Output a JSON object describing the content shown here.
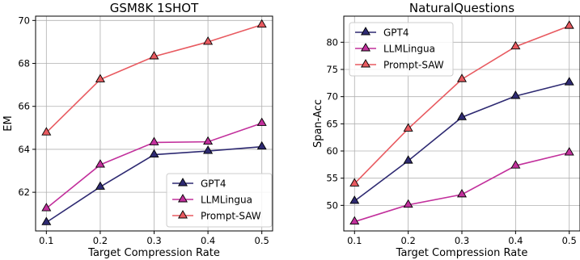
{
  "chart_data": [
    {
      "type": "line",
      "title": "GSM8K 1SHOT",
      "xlabel": "Target Compression Rate",
      "ylabel": "EM",
      "x": [
        0.1,
        0.2,
        0.3,
        0.4,
        0.5
      ],
      "x_tick_labels": [
        "0.1",
        "0.2",
        "0.3",
        "0.4",
        "0.5"
      ],
      "yticks": [
        62,
        64,
        66,
        68,
        70
      ],
      "y_tick_labels": [
        "62",
        "64",
        "66",
        "68",
        "70"
      ],
      "xlim": [
        0.08,
        0.52
      ],
      "ylim": [
        60.2,
        70.2
      ],
      "grid": true,
      "legend_position": "lower-right",
      "series": [
        {
          "name": "GPT4",
          "color": "#2e2a72",
          "values": [
            60.6,
            62.25,
            63.75,
            63.92,
            64.12
          ]
        },
        {
          "name": "LLMLingua",
          "color": "#c2309c",
          "values": [
            61.25,
            63.28,
            64.32,
            64.35,
            65.22
          ]
        },
        {
          "name": "Prompt-SAW",
          "color": "#e85a60",
          "values": [
            64.78,
            67.25,
            68.32,
            69.0,
            69.8
          ]
        }
      ]
    },
    {
      "type": "line",
      "title": "NaturalQuestions",
      "xlabel": "Target Compression Rate",
      "ylabel": "Span-Acc",
      "x": [
        0.1,
        0.2,
        0.3,
        0.4,
        0.5
      ],
      "x_tick_labels": [
        "0.1",
        "0.2",
        "0.3",
        "0.4",
        "0.5"
      ],
      "yticks": [
        50,
        55,
        60,
        65,
        70,
        75,
        80
      ],
      "y_tick_labels": [
        "50",
        "55",
        "60",
        "65",
        "70",
        "75",
        "80"
      ],
      "xlim": [
        0.08,
        0.52
      ],
      "ylim": [
        45.3,
        84.8
      ],
      "grid": true,
      "legend_position": "upper-left",
      "series": [
        {
          "name": "GPT4",
          "color": "#2e2a72",
          "values": [
            50.8,
            58.2,
            66.2,
            70.1,
            72.6
          ]
        },
        {
          "name": "LLMLingua",
          "color": "#c2309c",
          "values": [
            47.0,
            50.1,
            52.0,
            57.3,
            59.7
          ]
        },
        {
          "name": "Prompt-SAW",
          "color": "#e85a60",
          "values": [
            54.0,
            64.1,
            73.2,
            79.2,
            83.0
          ]
        }
      ]
    }
  ]
}
